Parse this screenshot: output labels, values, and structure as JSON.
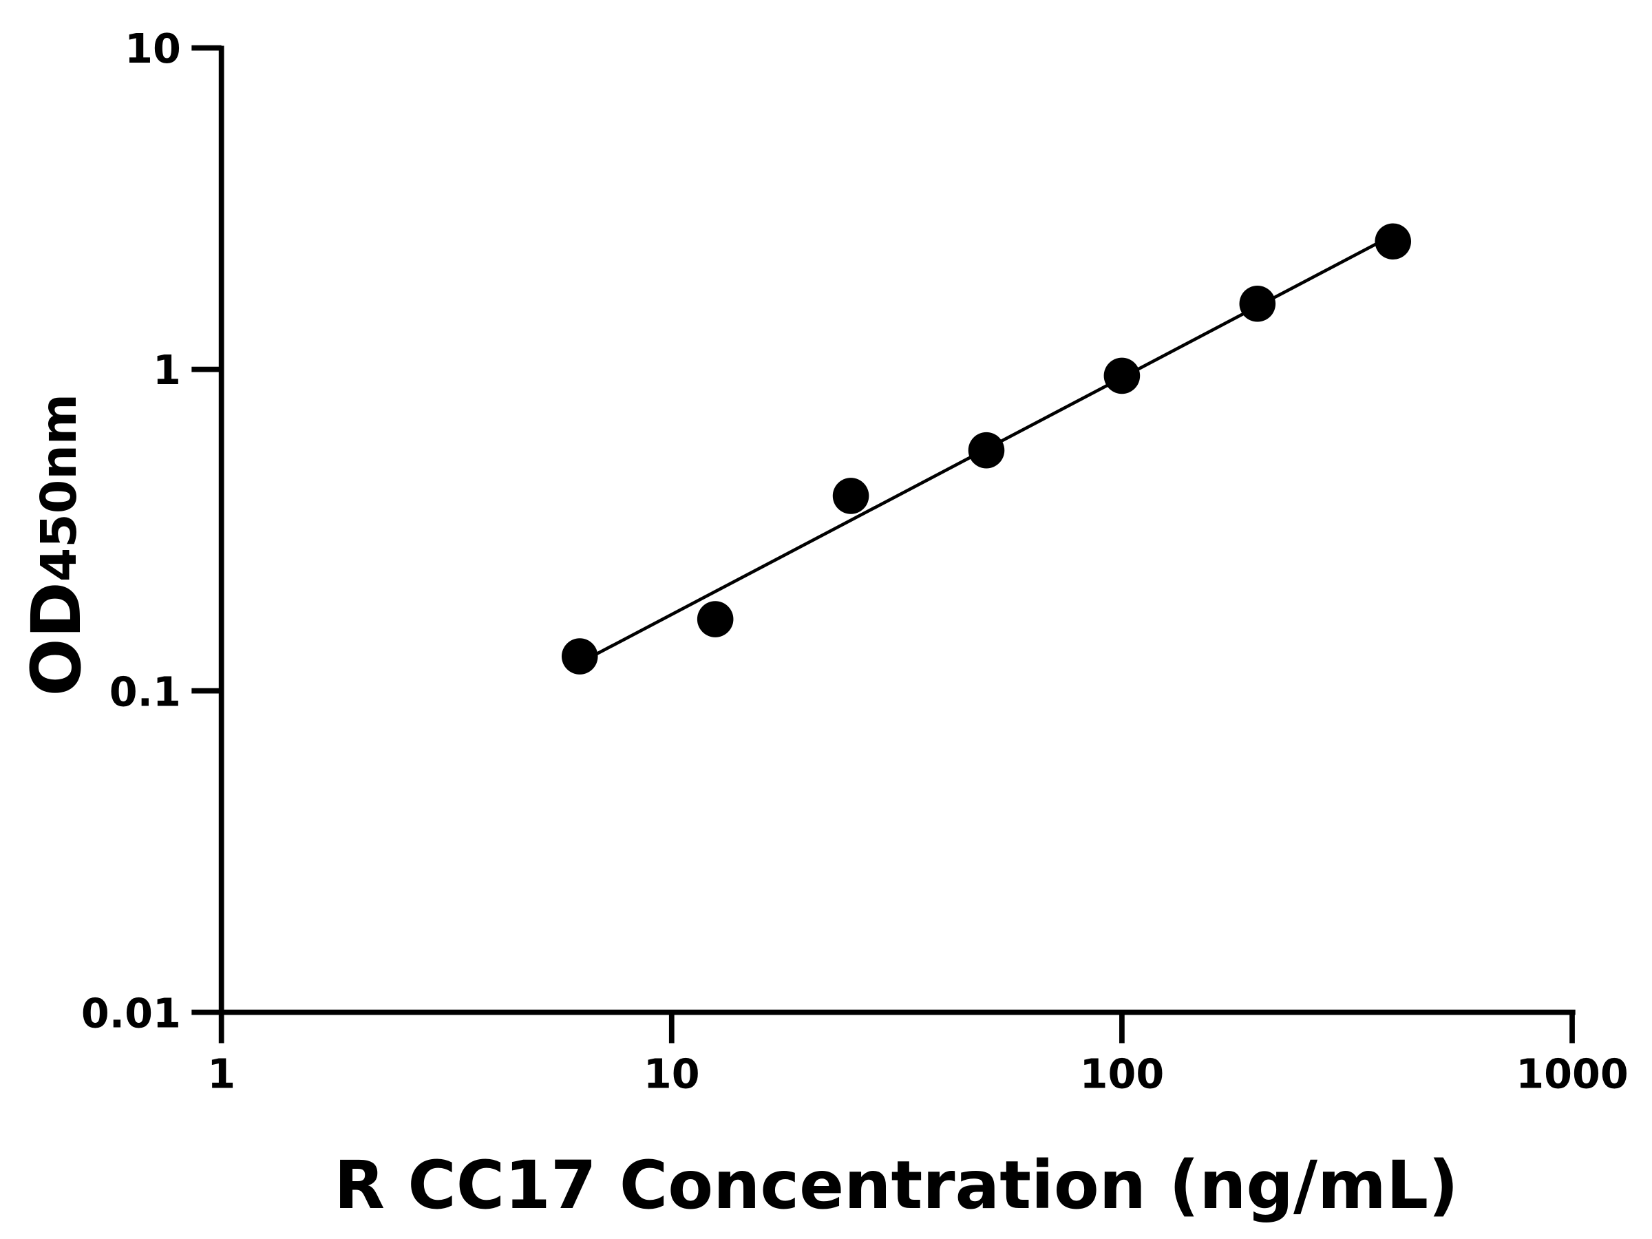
{
  "chart_data": {
    "type": "scatter",
    "title": "",
    "xlabel": "R CC17 Concentration (ng/mL)",
    "ylabel": {
      "main": "OD",
      "subscript": "450nm"
    },
    "xscale": "log",
    "yscale": "log",
    "xlim": [
      1,
      1000
    ],
    "ylim": [
      0.01,
      10
    ],
    "grid": false,
    "x_ticks": [
      "1",
      "10",
      "100",
      "1000"
    ],
    "y_ticks": [
      "0.01",
      "0.1",
      "1",
      "10"
    ],
    "series": [
      {
        "x": [
          6.25,
          12.5,
          25,
          50,
          100,
          200,
          400
        ],
        "y": [
          0.128,
          0.167,
          0.404,
          0.56,
          0.955,
          1.6,
          2.5
        ],
        "fit_line": "log-log linear"
      }
    ],
    "colors": {
      "marker": "#000000",
      "line": "#000000",
      "axes": "#000000"
    }
  }
}
